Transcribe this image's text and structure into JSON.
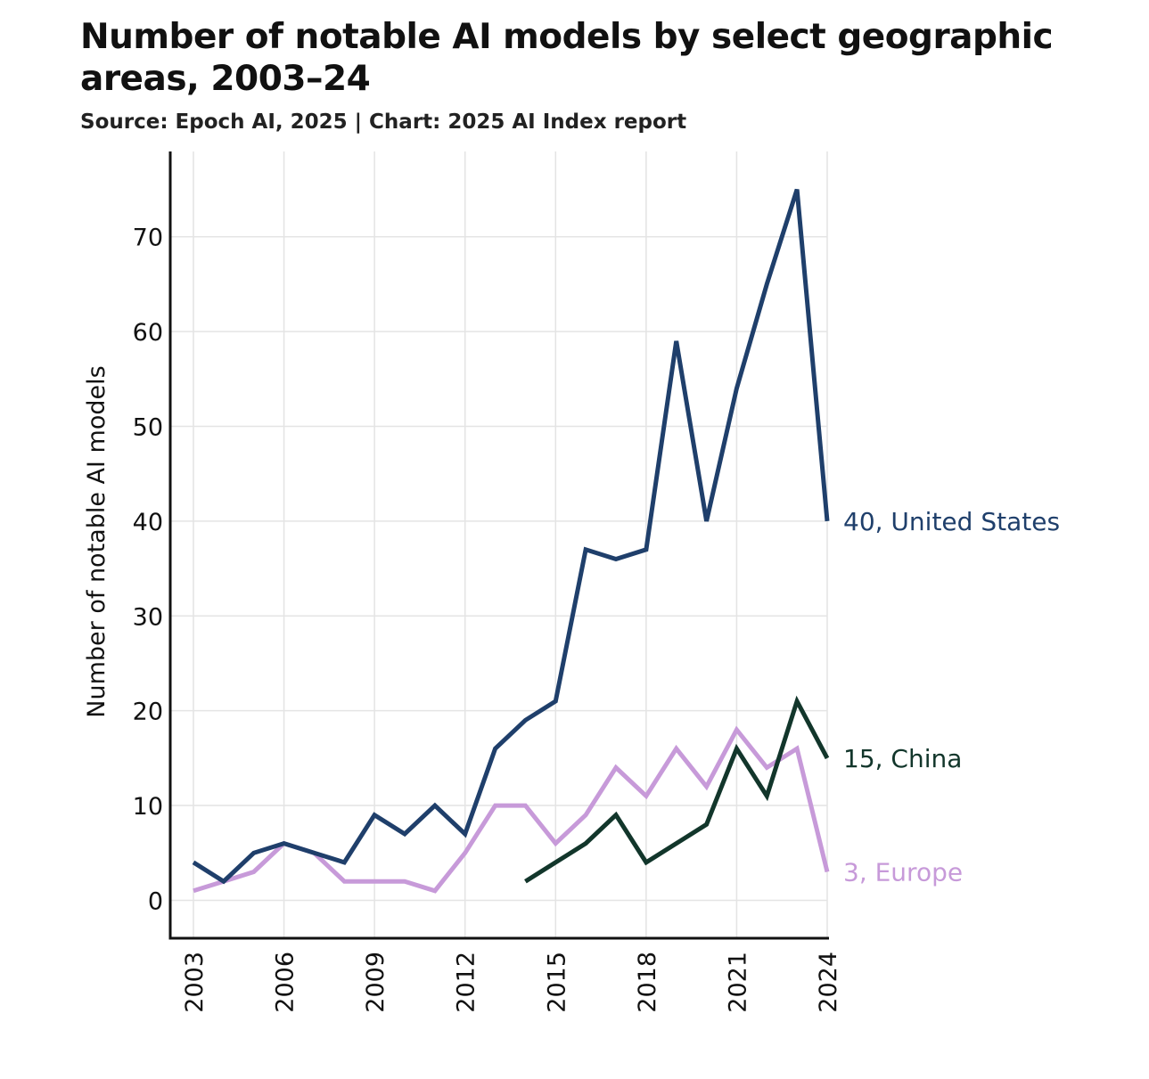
{
  "header": {
    "title": "Number of notable AI models by select geographic areas, 2003–24",
    "subtitle": "Source: Epoch AI, 2025 | Chart: 2025 AI Index report"
  },
  "chart_data": {
    "type": "line",
    "title": "Number of notable AI models by select geographic areas, 2003–24",
    "subtitle": "Source: Epoch AI, 2025 | Chart: 2025 AI Index report",
    "xlabel": "",
    "ylabel": "Number of notable AI models",
    "x": [
      2003,
      2004,
      2005,
      2006,
      2007,
      2008,
      2009,
      2010,
      2011,
      2012,
      2013,
      2014,
      2015,
      2016,
      2017,
      2018,
      2019,
      2020,
      2021,
      2022,
      2023,
      2024
    ],
    "xticks": [
      "2003",
      "2006",
      "2009",
      "2012",
      "2015",
      "2018",
      "2021",
      "2024"
    ],
    "yticks": [
      "0",
      "10",
      "20",
      "30",
      "40",
      "50",
      "60",
      "70"
    ],
    "xlim": [
      2003,
      2024
    ],
    "ylim": [
      -4,
      79
    ],
    "grid": true,
    "series": [
      {
        "name": "United States",
        "color": "#1f3f6b",
        "end_label": "40, United States",
        "values": [
          4,
          2,
          5,
          6,
          5,
          4,
          9,
          7,
          10,
          7,
          16,
          19,
          21,
          37,
          36,
          37,
          59,
          40,
          54,
          65,
          75,
          40
        ]
      },
      {
        "name": "China",
        "color": "#12362b",
        "end_label": "15, China",
        "values": [
          null,
          null,
          null,
          null,
          null,
          null,
          null,
          null,
          null,
          null,
          null,
          2,
          4,
          6,
          9,
          4,
          6,
          8,
          16,
          11,
          21,
          15
        ]
      },
      {
        "name": "Europe",
        "color": "#c79ad9",
        "end_label": "3, Europe",
        "values": [
          1,
          2,
          3,
          6,
          5,
          2,
          2,
          2,
          1,
          5,
          10,
          10,
          6,
          9,
          14,
          11,
          16,
          12,
          18,
          14,
          16,
          3
        ]
      }
    ]
  }
}
